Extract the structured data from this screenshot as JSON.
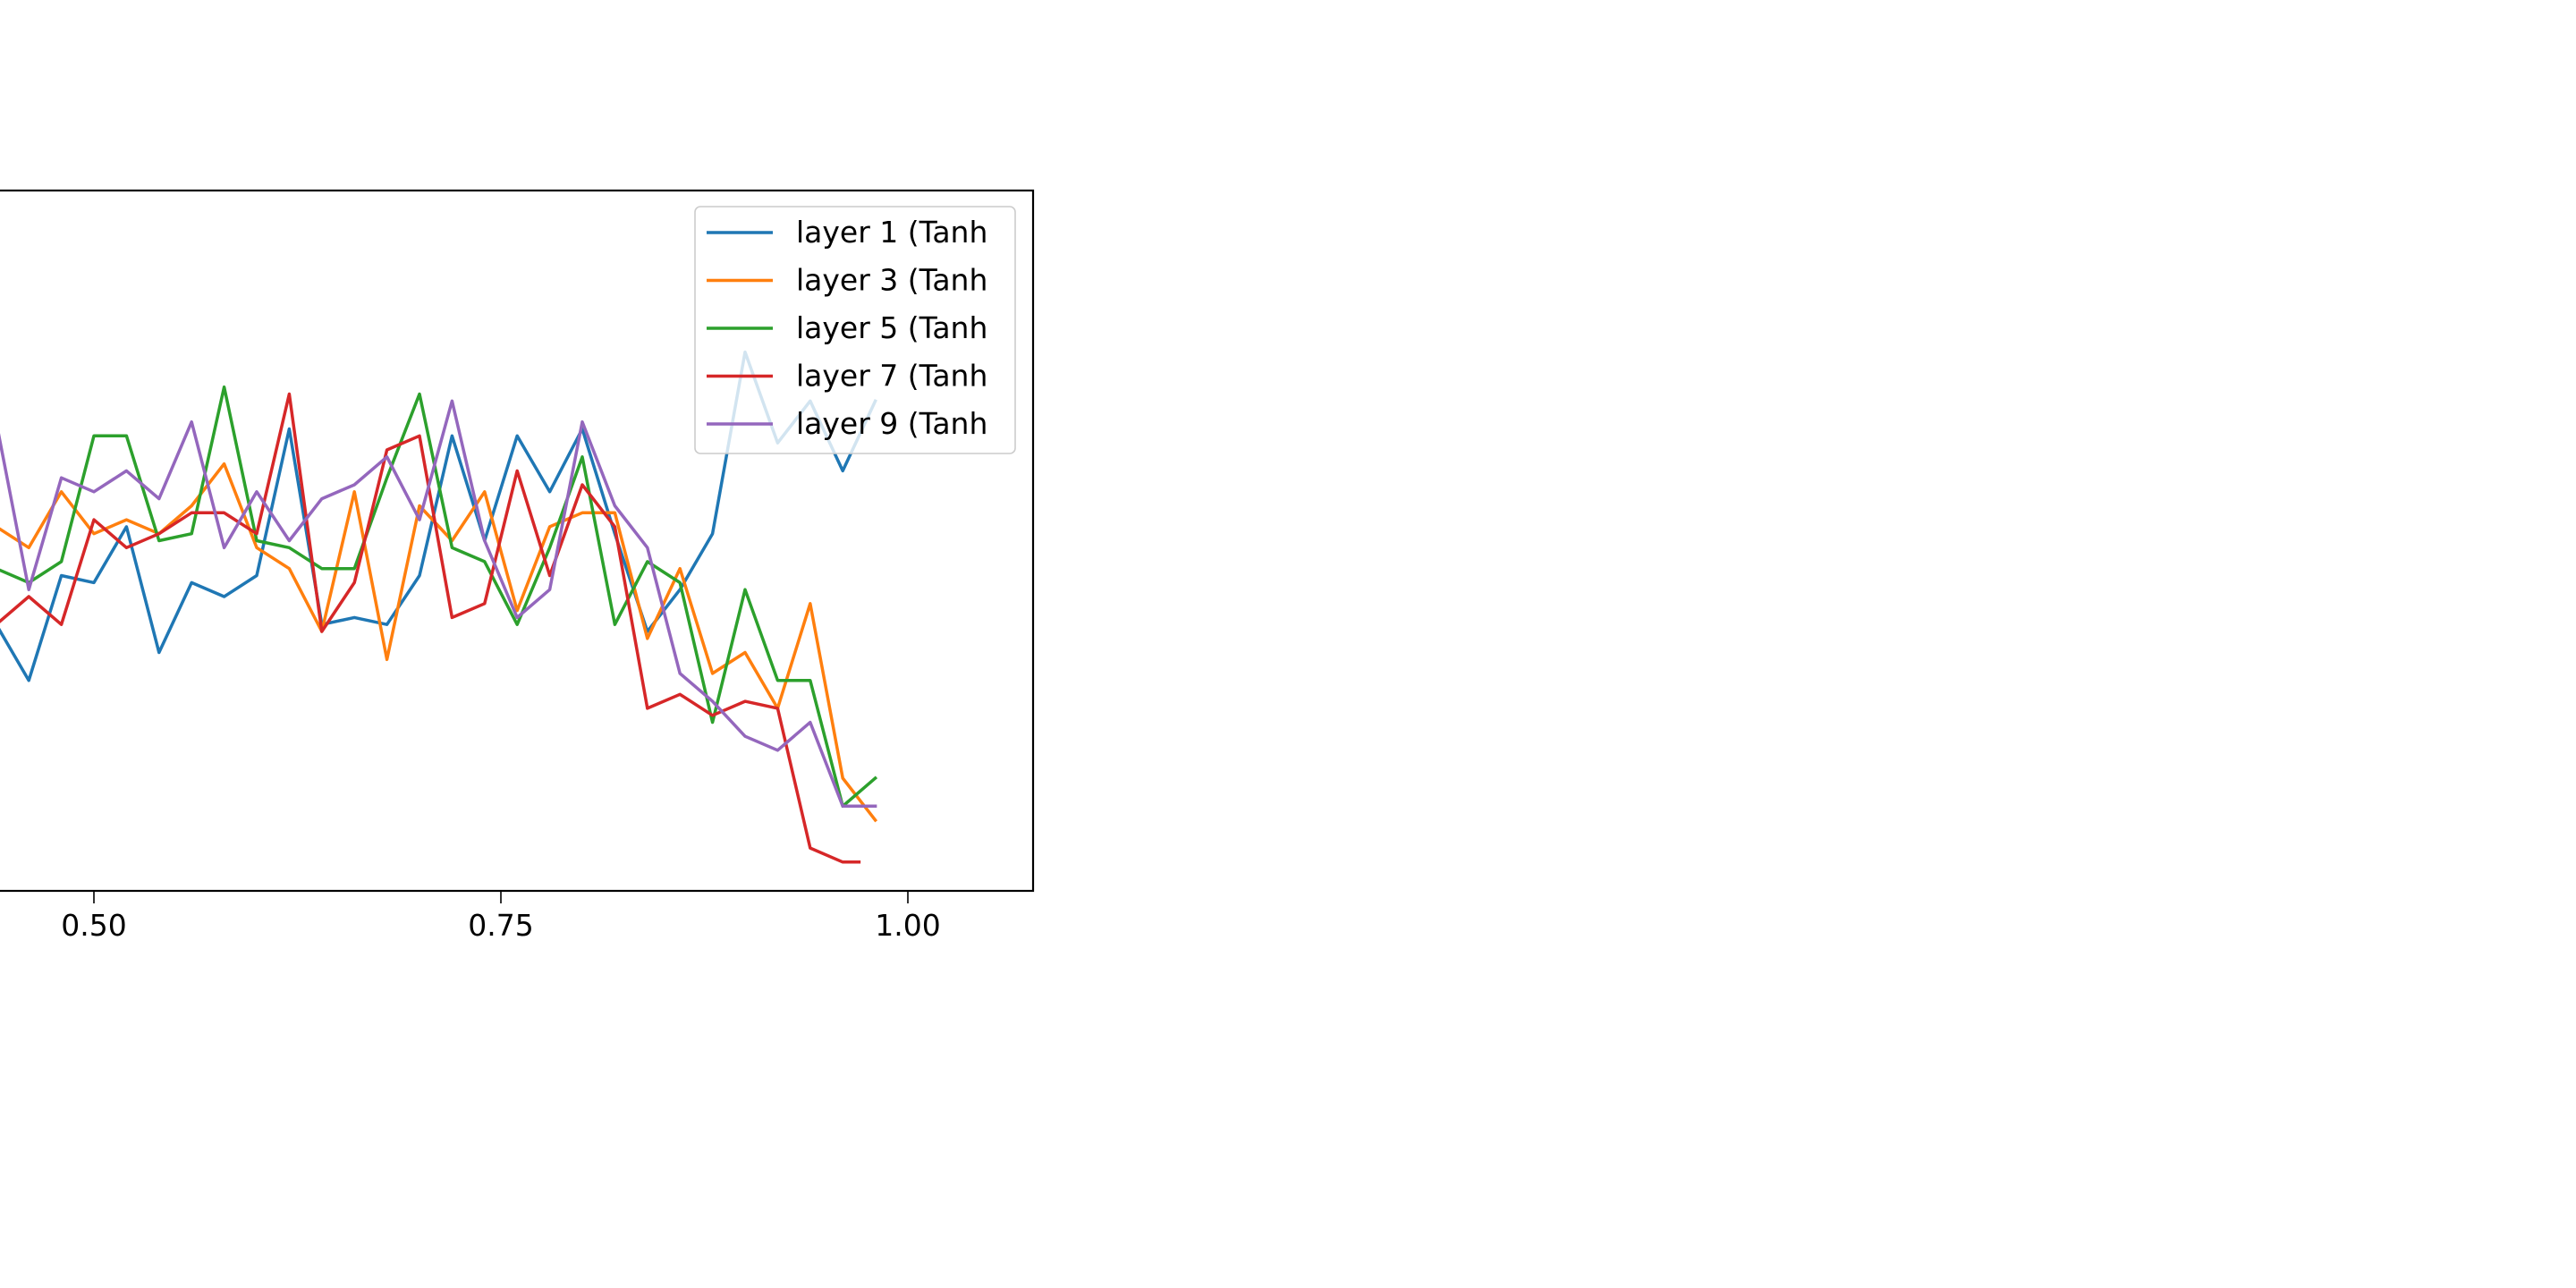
{
  "chart_data": {
    "type": "line",
    "title": "",
    "xlabel": "",
    "ylabel": "",
    "xlim": [
      0.4,
      1.08
    ],
    "ylim": [
      0,
      1
    ],
    "x_ticks": [
      {
        "value": 0.5,
        "label": "0.50"
      },
      {
        "value": 0.75,
        "label": "0.75"
      },
      {
        "value": 1.0,
        "label": "1.00"
      }
    ],
    "grid": false,
    "legend_position": "top-right",
    "series": [
      {
        "name": "layer 1 (Tanh",
        "color": "#1f77b4",
        "x": [
          0.44,
          0.46,
          0.48,
          0.5,
          0.52,
          0.54,
          0.56,
          0.58,
          0.6,
          0.62,
          0.64,
          0.66,
          0.68,
          0.7,
          0.72,
          0.74,
          0.76,
          0.78,
          0.8,
          0.82,
          0.84,
          0.86,
          0.88,
          0.9,
          0.92,
          0.94,
          0.96,
          0.98
        ],
        "y": [
          0.38,
          0.3,
          0.45,
          0.44,
          0.52,
          0.34,
          0.44,
          0.42,
          0.45,
          0.66,
          0.38,
          0.39,
          0.38,
          0.45,
          0.65,
          0.5,
          0.65,
          0.57,
          0.66,
          0.51,
          0.37,
          0.43,
          0.51,
          0.77,
          0.64,
          0.7,
          0.6,
          0.7
        ]
      },
      {
        "name": "layer 3 (Tanh",
        "color": "#ff7f0e",
        "x": [
          0.44,
          0.46,
          0.48,
          0.5,
          0.52,
          0.54,
          0.56,
          0.58,
          0.6,
          0.62,
          0.64,
          0.66,
          0.68,
          0.7,
          0.72,
          0.74,
          0.76,
          0.78,
          0.8,
          0.82,
          0.84,
          0.86,
          0.88,
          0.9,
          0.92,
          0.94,
          0.96,
          0.98
        ],
        "y": [
          0.52,
          0.49,
          0.57,
          0.51,
          0.53,
          0.51,
          0.55,
          0.61,
          0.49,
          0.46,
          0.37,
          0.57,
          0.33,
          0.55,
          0.5,
          0.57,
          0.4,
          0.52,
          0.54,
          0.54,
          0.36,
          0.46,
          0.31,
          0.34,
          0.26,
          0.41,
          0.16,
          0.1
        ]
      },
      {
        "name": "layer 5 (Tanh",
        "color": "#2ca02c",
        "x": [
          0.44,
          0.46,
          0.48,
          0.5,
          0.52,
          0.54,
          0.56,
          0.58,
          0.6,
          0.62,
          0.64,
          0.66,
          0.68,
          0.7,
          0.72,
          0.74,
          0.76,
          0.78,
          0.8,
          0.82,
          0.84,
          0.86,
          0.88,
          0.9,
          0.92,
          0.94,
          0.96,
          0.98
        ],
        "y": [
          0.46,
          0.44,
          0.47,
          0.65,
          0.65,
          0.5,
          0.51,
          0.72,
          0.5,
          0.49,
          0.46,
          0.46,
          0.59,
          0.71,
          0.49,
          0.47,
          0.38,
          0.49,
          0.62,
          0.38,
          0.47,
          0.44,
          0.24,
          0.43,
          0.3,
          0.3,
          0.12,
          0.16
        ]
      },
      {
        "name": "layer 7 (Tanh",
        "color": "#d62728",
        "x": [
          0.44,
          0.46,
          0.48,
          0.5,
          0.52,
          0.54,
          0.56,
          0.58,
          0.6,
          0.62,
          0.64,
          0.66,
          0.68,
          0.7,
          0.72,
          0.74,
          0.76,
          0.78,
          0.8,
          0.82,
          0.84,
          0.86,
          0.88,
          0.9,
          0.92,
          0.94,
          0.96,
          0.97
        ],
        "y": [
          0.38,
          0.42,
          0.38,
          0.53,
          0.49,
          0.51,
          0.54,
          0.54,
          0.51,
          0.71,
          0.37,
          0.44,
          0.63,
          0.65,
          0.39,
          0.41,
          0.6,
          0.45,
          0.58,
          0.52,
          0.26,
          0.28,
          0.25,
          0.27,
          0.26,
          0.06,
          0.04,
          0.04
        ]
      },
      {
        "name": "layer 9 (Tanh",
        "color": "#9467bd",
        "x": [
          0.44,
          0.46,
          0.48,
          0.5,
          0.52,
          0.54,
          0.56,
          0.58,
          0.6,
          0.62,
          0.64,
          0.66,
          0.68,
          0.7,
          0.72,
          0.74,
          0.76,
          0.78,
          0.8,
          0.82,
          0.84,
          0.86,
          0.88,
          0.9,
          0.92,
          0.94,
          0.96,
          0.98
        ],
        "y": [
          0.67,
          0.43,
          0.59,
          0.57,
          0.6,
          0.56,
          0.67,
          0.49,
          0.57,
          0.5,
          0.56,
          0.58,
          0.62,
          0.53,
          0.7,
          0.5,
          0.39,
          0.43,
          0.67,
          0.55,
          0.49,
          0.31,
          0.27,
          0.22,
          0.2,
          0.24,
          0.12,
          0.12
        ]
      }
    ]
  }
}
